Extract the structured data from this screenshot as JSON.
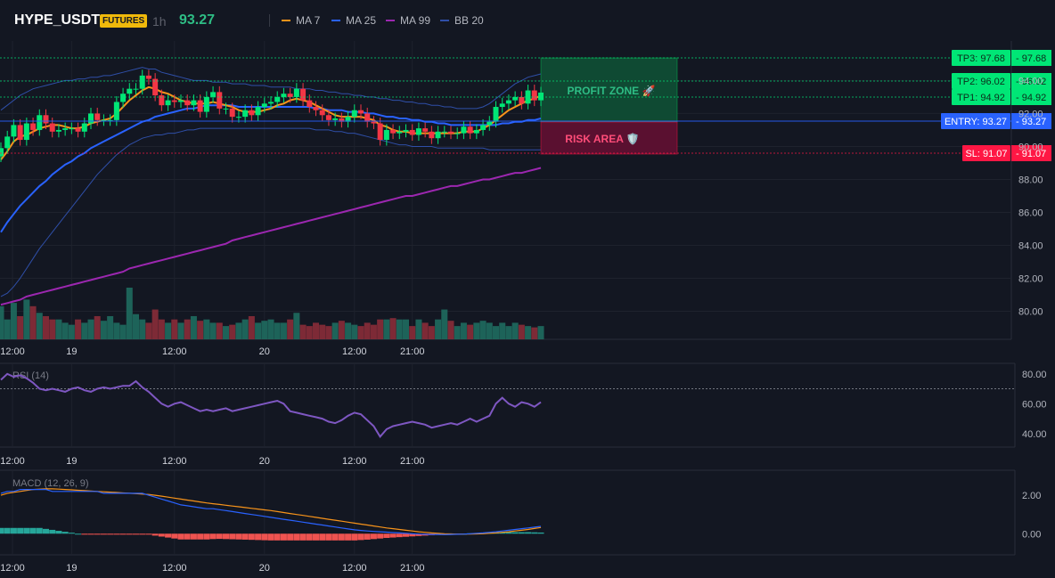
{
  "header": {
    "symbol": "HYPE_USDT",
    "badge": "FUTURES",
    "timeframe": "1h",
    "price": "93.27",
    "legend": [
      {
        "label": "MA 7",
        "color": "#f7931a"
      },
      {
        "label": "MA 25",
        "color": "#2962ff"
      },
      {
        "label": "MA 99",
        "color": "#9c27b0"
      },
      {
        "label": "BB 20",
        "color": "#1e3a8a"
      }
    ]
  },
  "colors": {
    "up": "#26a69a",
    "up_bright": "#00e676",
    "down": "#f23645",
    "tp": "#00e676",
    "sl": "#ff1744",
    "entry": "#2962ff"
  },
  "chart_data": [
    {
      "type": "candlestick",
      "x_ticks": [
        "12:00",
        "19",
        "12:00",
        "20",
        "12:00",
        "21:00"
      ],
      "y_ticks": [
        80,
        82,
        84,
        86,
        88,
        90,
        92,
        94
      ],
      "ylim": [
        78.3,
        96.4
      ],
      "close": [
        89.9,
        90.6,
        91.3,
        90.4,
        91.4,
        91.0,
        91.9,
        91.4,
        90.9,
        91.0,
        91.1,
        91.1,
        90.9,
        91.4,
        92.0,
        91.6,
        91.6,
        91.6,
        92.7,
        93.2,
        93.5,
        93.5,
        94.3,
        94.1,
        93.1,
        92.5,
        92.8,
        92.7,
        92.8,
        92.5,
        92.8,
        92.1,
        93.0,
        93.3,
        92.3,
        92.3,
        91.8,
        91.8,
        92.2,
        91.9,
        92.4,
        92.6,
        92.7,
        93.0,
        93.2,
        93.0,
        93.5,
        92.8,
        92.4,
        92.2,
        91.9,
        91.6,
        91.7,
        91.5,
        91.8,
        92.2,
        92.0,
        91.5,
        91.4,
        90.4,
        91.0,
        90.8,
        90.9,
        91.0,
        90.7,
        91.1,
        90.9,
        90.5,
        90.9,
        90.9,
        90.8,
        90.8,
        91.2,
        90.8,
        91.0,
        91.3,
        91.5,
        92.4,
        92.6,
        92.8,
        93.0,
        92.6,
        93.4,
        92.8,
        93.27
      ],
      "ma7": [
        89.2,
        89.7,
        90.3,
        90.6,
        90.7,
        90.9,
        91.1,
        91.2,
        91.3,
        91.3,
        91.2,
        91.1,
        91.1,
        91.2,
        91.4,
        91.5,
        91.6,
        91.7,
        92.0,
        92.4,
        92.8,
        93.1,
        93.4,
        93.6,
        93.5,
        93.3,
        93.2,
        93.0,
        92.8,
        92.7,
        92.6,
        92.6,
        92.6,
        92.7,
        92.6,
        92.5,
        92.4,
        92.2,
        92.1,
        92.1,
        92.1,
        92.2,
        92.3,
        92.5,
        92.6,
        92.8,
        92.9,
        92.8,
        92.7,
        92.5,
        92.3,
        92.1,
        91.9,
        91.8,
        91.8,
        91.8,
        91.8,
        91.7,
        91.6,
        91.3,
        91.2,
        91.0,
        90.9,
        90.9,
        90.8,
        90.8,
        90.8,
        90.8,
        90.8,
        90.8,
        90.8,
        90.8,
        90.9,
        90.9,
        90.9,
        91.1,
        91.3,
        91.6,
        91.9,
        92.2,
        92.4,
        92.6,
        92.8,
        92.9,
        93.1
      ],
      "ma25": [
        84.8,
        85.4,
        85.9,
        86.4,
        86.8,
        87.2,
        87.6,
        87.9,
        88.3,
        88.6,
        88.9,
        89.1,
        89.4,
        89.6,
        89.9,
        90.1,
        90.3,
        90.5,
        90.7,
        90.9,
        91.1,
        91.3,
        91.5,
        91.6,
        91.8,
        91.9,
        92.0,
        92.1,
        92.2,
        92.3,
        92.3,
        92.4,
        92.5,
        92.5,
        92.5,
        92.5,
        92.5,
        92.4,
        92.4,
        92.4,
        92.4,
        92.4,
        92.4,
        92.4,
        92.4,
        92.4,
        92.4,
        92.4,
        92.4,
        92.3,
        92.3,
        92.2,
        92.2,
        92.2,
        92.1,
        92.1,
        92.1,
        92.0,
        92.0,
        91.9,
        91.8,
        91.8,
        91.7,
        91.7,
        91.6,
        91.6,
        91.5,
        91.5,
        91.4,
        91.4,
        91.3,
        91.3,
        91.3,
        91.3,
        91.3,
        91.3,
        91.3,
        91.3,
        91.4,
        91.4,
        91.5,
        91.5,
        91.6,
        91.6,
        91.7
      ],
      "ma99": [
        80.4,
        80.5,
        80.6,
        80.7,
        80.9,
        81.0,
        81.1,
        81.2,
        81.3,
        81.4,
        81.5,
        81.6,
        81.7,
        81.8,
        81.9,
        82.0,
        82.1,
        82.2,
        82.3,
        82.4,
        82.6,
        82.7,
        82.8,
        82.9,
        83.0,
        83.1,
        83.2,
        83.3,
        83.4,
        83.5,
        83.6,
        83.7,
        83.8,
        83.9,
        84.0,
        84.1,
        84.3,
        84.4,
        84.5,
        84.6,
        84.7,
        84.8,
        84.9,
        85.0,
        85.1,
        85.2,
        85.3,
        85.4,
        85.5,
        85.6,
        85.7,
        85.8,
        85.9,
        86.0,
        86.1,
        86.2,
        86.3,
        86.4,
        86.5,
        86.6,
        86.7,
        86.8,
        86.9,
        87.0,
        87.0,
        87.1,
        87.2,
        87.3,
        87.4,
        87.5,
        87.6,
        87.6,
        87.7,
        87.8,
        87.9,
        88.0,
        88.0,
        88.1,
        88.2,
        88.3,
        88.4,
        88.4,
        88.5,
        88.6,
        88.7
      ],
      "bb_upper": [
        92.2,
        92.5,
        92.8,
        93.1,
        93.3,
        93.5,
        93.6,
        93.7,
        93.8,
        93.9,
        94.0,
        94.0,
        94.1,
        94.1,
        94.2,
        94.2,
        94.3,
        94.3,
        94.4,
        94.5,
        94.6,
        94.7,
        94.8,
        94.7,
        94.7,
        94.5,
        94.4,
        94.3,
        94.2,
        94.1,
        94.0,
        94.0,
        94.0,
        93.9,
        93.9,
        93.9,
        93.8,
        93.8,
        93.8,
        93.7,
        93.7,
        93.7,
        93.6,
        93.6,
        93.6,
        93.6,
        93.5,
        93.5,
        93.5,
        93.4,
        93.4,
        93.3,
        93.3,
        93.2,
        93.2,
        93.1,
        93.1,
        93.0,
        93.0,
        92.9,
        92.9,
        92.8,
        92.8,
        92.7,
        92.7,
        92.6,
        92.6,
        92.5,
        92.5,
        92.4,
        92.4,
        92.3,
        92.3,
        92.3,
        92.3,
        92.4,
        92.6,
        92.9,
        93.2,
        93.5,
        93.8,
        94.0,
        94.2,
        94.3,
        94.4
      ],
      "bb_lower": [
        80.9,
        81.1,
        81.5,
        82.0,
        82.6,
        83.2,
        83.8,
        84.3,
        84.8,
        85.3,
        85.8,
        86.3,
        86.8,
        87.3,
        87.8,
        88.3,
        88.7,
        89.1,
        89.5,
        89.8,
        90.1,
        90.3,
        90.5,
        90.6,
        90.7,
        90.7,
        90.8,
        90.8,
        90.9,
        91.0,
        91.0,
        91.1,
        91.1,
        91.1,
        91.1,
        91.1,
        91.1,
        91.1,
        91.1,
        91.1,
        91.1,
        91.1,
        91.1,
        91.1,
        91.1,
        91.1,
        91.1,
        91.1,
        91.1,
        91.0,
        91.0,
        91.0,
        90.9,
        90.9,
        90.8,
        90.8,
        90.7,
        90.6,
        90.5,
        90.4,
        90.3,
        90.2,
        90.1,
        90.1,
        90.0,
        90.0,
        90.0,
        90.0,
        89.9,
        89.9,
        89.9,
        89.9,
        89.9,
        89.9,
        89.9,
        89.9,
        89.8,
        89.8,
        89.8,
        89.8,
        89.8,
        89.8,
        89.8,
        89.8,
        89.8
      ],
      "volume": [
        50,
        30,
        55,
        35,
        60,
        50,
        40,
        35,
        30,
        30,
        25,
        22,
        30,
        25,
        30,
        35,
        28,
        35,
        25,
        22,
        78,
        38,
        30,
        25,
        45,
        30,
        25,
        30,
        25,
        30,
        35,
        28,
        30,
        25,
        25,
        20,
        22,
        25,
        30,
        35,
        25,
        28,
        30,
        25,
        25,
        30,
        40,
        22,
        20,
        25,
        22,
        20,
        25,
        28,
        25,
        22,
        20,
        25,
        22,
        30,
        30,
        32,
        30,
        30,
        20,
        30,
        25,
        20,
        30,
        45,
        28,
        20,
        25,
        22,
        25,
        28,
        25,
        20,
        25,
        20,
        25,
        22,
        20,
        18,
        20
      ],
      "levels": {
        "tp3": {
          "label": "TP3: 97.68",
          "value": 97.68,
          "price": "97.68"
        },
        "tp2": {
          "label": "TP2: 96.02",
          "value": 96.02,
          "price": "96.02"
        },
        "tp1": {
          "label": "TP1: 94.92",
          "value": 94.92,
          "price": "94.92"
        },
        "entry": {
          "label": "ENTRY: 93.27",
          "value": 93.27,
          "price": "93.27"
        },
        "sl": {
          "label": "SL: 91.07",
          "value": 91.07,
          "price": "91.07"
        }
      },
      "zones": {
        "profit": "PROFIT ZONE 🚀",
        "risk": "RISK AREA 🛡️"
      }
    },
    {
      "type": "line",
      "title": "RSI (14)",
      "y_ticks": [
        40,
        60,
        80
      ],
      "ylim": [
        31,
        87
      ],
      "reference": 70,
      "values": [
        76,
        80,
        78,
        79,
        77,
        74,
        70,
        69,
        70,
        69,
        68,
        70,
        71,
        69,
        68,
        70,
        71,
        70,
        71,
        72,
        72,
        75,
        71,
        68,
        64,
        60,
        58,
        60,
        61,
        59,
        57,
        55,
        56,
        55,
        56,
        57,
        55,
        56,
        57,
        58,
        59,
        60,
        61,
        62,
        60,
        55,
        54,
        53,
        52,
        51,
        50,
        48,
        47,
        49,
        52,
        54,
        53,
        49,
        45,
        38,
        43,
        45,
        46,
        47,
        48,
        47,
        46,
        44,
        45,
        46,
        47,
        46,
        48,
        50,
        48,
        50,
        52,
        60,
        64,
        60,
        58,
        61,
        60,
        58,
        61
      ]
    },
    {
      "type": "line",
      "title": "MACD (12, 26, 9)",
      "y_ticks": [
        0,
        2
      ],
      "ylim": [
        -1.1,
        3.3
      ],
      "macd": [
        2.1,
        2.2,
        2.2,
        2.3,
        2.3,
        2.3,
        2.3,
        2.3,
        2.2,
        2.2,
        2.2,
        2.2,
        2.2,
        2.2,
        2.2,
        2.2,
        2.1,
        2.1,
        2.1,
        2.1,
        2.1,
        2.1,
        2.1,
        2.0,
        1.9,
        1.8,
        1.7,
        1.6,
        1.5,
        1.45,
        1.4,
        1.35,
        1.3,
        1.3,
        1.25,
        1.2,
        1.15,
        1.1,
        1.05,
        1.0,
        0.95,
        0.9,
        0.85,
        0.8,
        0.75,
        0.7,
        0.65,
        0.6,
        0.55,
        0.5,
        0.45,
        0.4,
        0.35,
        0.3,
        0.25,
        0.2,
        0.17,
        0.14,
        0.12,
        0.1,
        0.08,
        0.06,
        0.04,
        0.02,
        0.0,
        -0.02,
        -0.03,
        -0.04,
        -0.04,
        -0.05,
        -0.04,
        -0.03,
        -0.02,
        0.0,
        0.02,
        0.04,
        0.07,
        0.1,
        0.14,
        0.18,
        0.22,
        0.26,
        0.3,
        0.34,
        0.38
      ],
      "signal": [
        2.0,
        2.1,
        2.15,
        2.2,
        2.25,
        2.3,
        2.32,
        2.33,
        2.33,
        2.32,
        2.3,
        2.28,
        2.26,
        2.24,
        2.22,
        2.2,
        2.18,
        2.16,
        2.14,
        2.12,
        2.1,
        2.08,
        2.06,
        2.04,
        2.0,
        1.95,
        1.9,
        1.85,
        1.8,
        1.75,
        1.7,
        1.65,
        1.6,
        1.56,
        1.52,
        1.48,
        1.44,
        1.4,
        1.36,
        1.32,
        1.28,
        1.24,
        1.2,
        1.15,
        1.1,
        1.05,
        1.0,
        0.95,
        0.9,
        0.85,
        0.8,
        0.75,
        0.7,
        0.65,
        0.6,
        0.55,
        0.5,
        0.45,
        0.4,
        0.35,
        0.3,
        0.26,
        0.22,
        0.18,
        0.14,
        0.1,
        0.07,
        0.04,
        0.02,
        0.0,
        -0.01,
        -0.02,
        -0.02,
        -0.02,
        -0.01,
        0.0,
        0.02,
        0.04,
        0.07,
        0.1,
        0.14,
        0.18,
        0.22,
        0.27,
        0.32
      ],
      "histogram": [
        0.3,
        0.3,
        0.3,
        0.3,
        0.3,
        0.3,
        0.3,
        0.25,
        0.2,
        0.15,
        0.1,
        0.05,
        0.0,
        -0.05,
        -0.05,
        -0.05,
        -0.05,
        -0.05,
        -0.05,
        -0.05,
        -0.05,
        -0.05,
        -0.05,
        -0.05,
        -0.1,
        -0.15,
        -0.2,
        -0.25,
        -0.3,
        -0.3,
        -0.3,
        -0.3,
        -0.3,
        -0.28,
        -0.27,
        -0.28,
        -0.29,
        -0.3,
        -0.31,
        -0.32,
        -0.33,
        -0.34,
        -0.35,
        -0.35,
        -0.35,
        -0.35,
        -0.35,
        -0.35,
        -0.35,
        -0.35,
        -0.35,
        -0.35,
        -0.35,
        -0.35,
        -0.35,
        -0.35,
        -0.33,
        -0.31,
        -0.28,
        -0.25,
        -0.22,
        -0.2,
        -0.18,
        -0.16,
        -0.14,
        -0.12,
        -0.1,
        -0.08,
        -0.06,
        -0.05,
        -0.03,
        -0.01,
        0.0,
        0.02,
        0.03,
        0.04,
        0.05,
        0.06,
        0.07,
        0.08,
        0.08,
        0.08,
        0.08,
        0.07,
        0.06
      ]
    }
  ]
}
